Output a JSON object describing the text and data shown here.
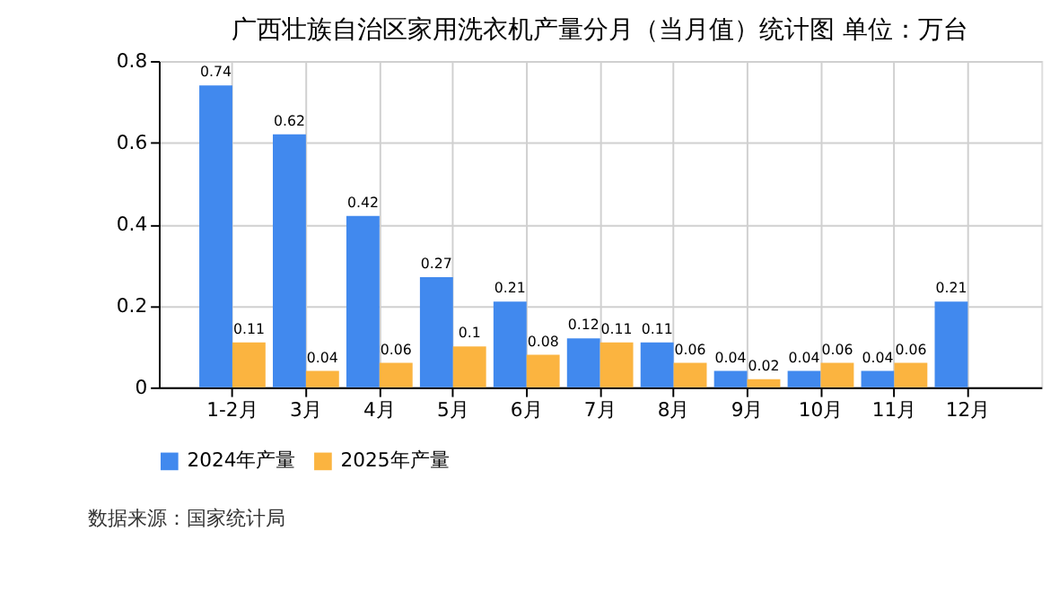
{
  "chart_data": {
    "type": "bar",
    "title": "广西壮族自治区家用洗衣机产量分月（当月值）统计图 单位：万台",
    "categories": [
      "1-2月",
      "3月",
      "4月",
      "5月",
      "6月",
      "7月",
      "8月",
      "9月",
      "10月",
      "11月",
      "12月"
    ],
    "series": [
      {
        "name": "2024年产量",
        "color": "#4189ee",
        "values": [
          0.74,
          0.62,
          0.42,
          0.27,
          0.21,
          0.12,
          0.11,
          0.04,
          0.04,
          0.04,
          0.21
        ]
      },
      {
        "name": "2025年产量",
        "color": "#fbb440",
        "values": [
          0.11,
          0.04,
          0.06,
          0.1,
          0.08,
          0.11,
          0.06,
          0.02,
          0.06,
          0.06,
          null
        ]
      }
    ],
    "ylim": [
      0,
      0.8
    ],
    "yticks": [
      0,
      0.2,
      0.4,
      0.6,
      0.8
    ],
    "grid": true,
    "legend": "bottom",
    "data_labels": true,
    "annotations": [
      "数据来源：国家统计局"
    ]
  }
}
